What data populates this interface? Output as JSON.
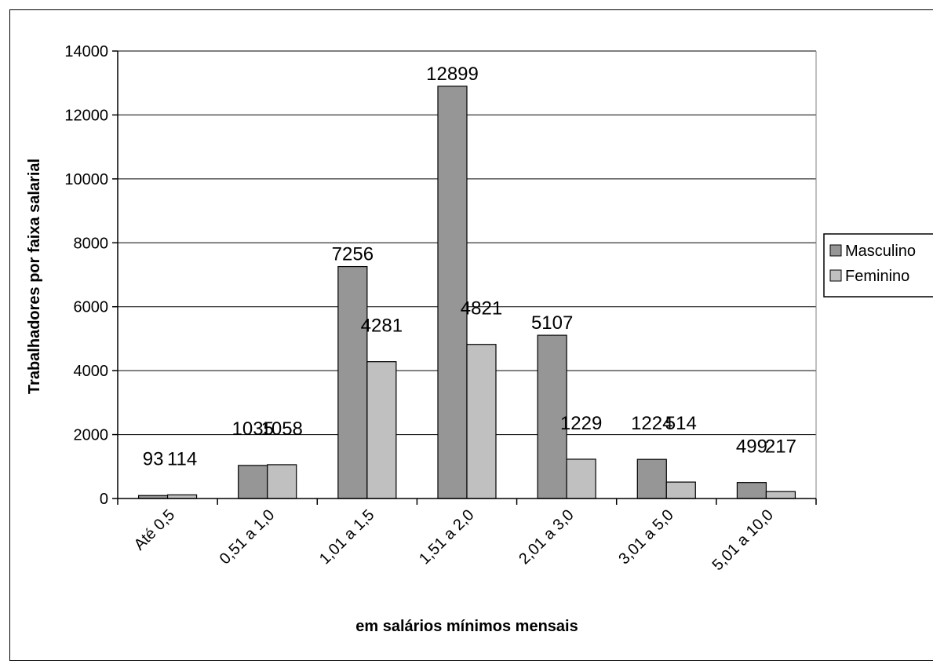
{
  "chart_data": {
    "type": "bar",
    "categories": [
      "Até 0,5",
      "0,51 a 1,0",
      "1,01 a 1,5",
      "1,51 a 2,0",
      "2,01 a 3,0",
      "3,01 a 5,0",
      "5,01 a 10,0"
    ],
    "series": [
      {
        "name": "Masculino",
        "values": [
          93,
          1035,
          7256,
          12899,
          5107,
          1224,
          499
        ]
      },
      {
        "name": "Feminino",
        "values": [
          114,
          1058,
          4281,
          4821,
          1229,
          514,
          217
        ]
      }
    ],
    "title": "",
    "xlabel": "em salários mínimos mensais",
    "ylabel": "Trabalhadores por faixa salarial",
    "ylim": [
      0,
      14000
    ],
    "yticks": [
      0,
      2000,
      4000,
      6000,
      8000,
      10000,
      12000,
      14000
    ],
    "grid": true,
    "legend": "right",
    "colors": {
      "Masculino": "#969696",
      "Feminino": "#c0c0c0"
    }
  }
}
